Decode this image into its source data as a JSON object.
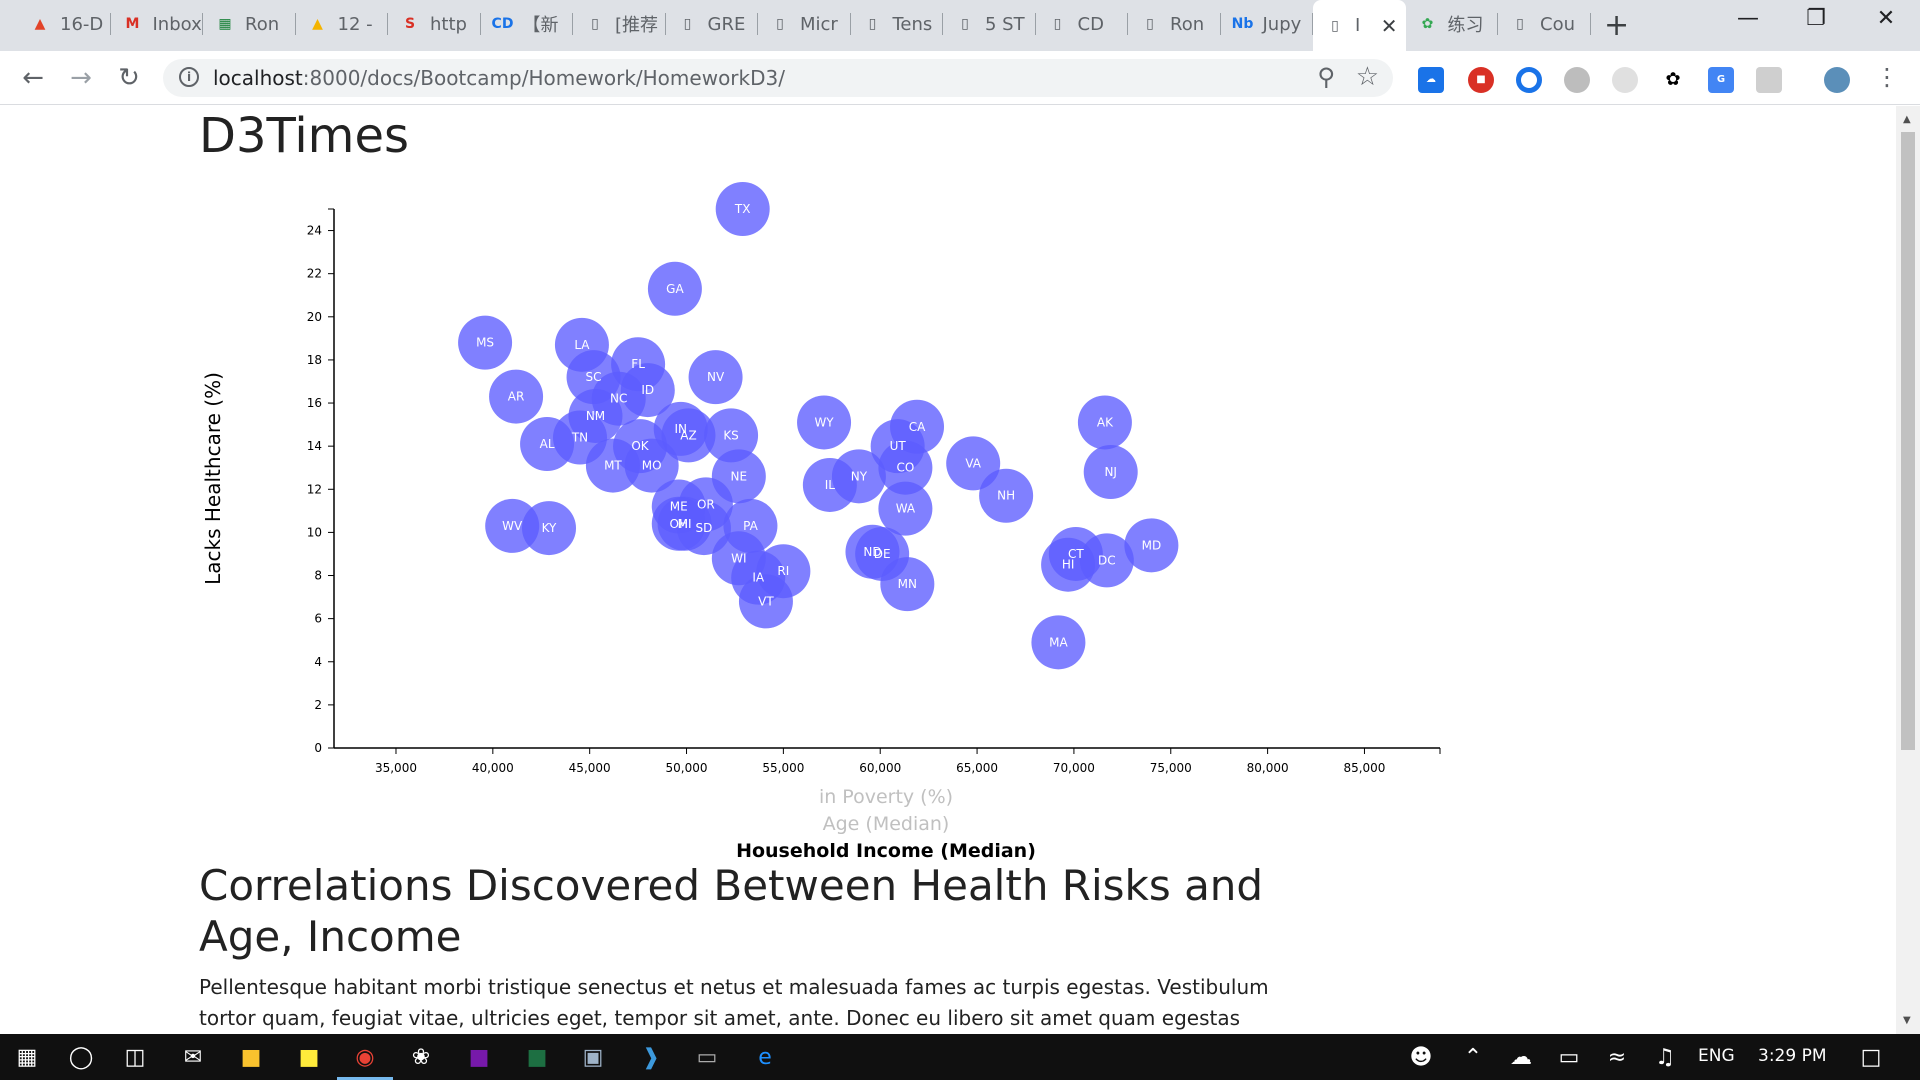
{
  "browser": {
    "tabs": [
      {
        "label": "16-D",
        "icon": "gitlab-icon",
        "color": "#e24329"
      },
      {
        "label": "Inbox",
        "icon": "gmail-icon",
        "color": "#d93025"
      },
      {
        "label": "Ron",
        "icon": "sheets-icon",
        "color": "#188038"
      },
      {
        "label": "12 -",
        "icon": "drive-icon",
        "color": "#f4b400"
      },
      {
        "label": "http",
        "icon": "s-icon",
        "color": "#d93025"
      },
      {
        "label": "【新",
        "icon": "cd-icon",
        "color": "#1a73e8"
      },
      {
        "label": "[推荐",
        "icon": "page-icon",
        "color": "#5f6368"
      },
      {
        "label": "GRE",
        "icon": "page-icon",
        "color": "#5f6368"
      },
      {
        "label": "Micr",
        "icon": "page-icon",
        "color": "#5f6368"
      },
      {
        "label": "Tens",
        "icon": "page-icon",
        "color": "#5f6368"
      },
      {
        "label": "5 ST",
        "icon": "page-icon",
        "color": "#5f6368"
      },
      {
        "label": "CD",
        "icon": "page-icon",
        "color": "#5f6368"
      },
      {
        "label": "Ron",
        "icon": "page-icon",
        "color": "#5f6368"
      },
      {
        "label": "Jupy",
        "icon": "jupyter-icon",
        "color": "#1a73e8"
      },
      {
        "label": "I",
        "icon": "page-icon",
        "color": "#5f6368"
      },
      {
        "label": "练习",
        "icon": "leaf-icon",
        "color": "#34a853"
      },
      {
        "label": "Cou",
        "icon": "page-icon",
        "color": "#5f6368"
      }
    ],
    "url_host": "localhost",
    "url_path": ":8000/docs/Bootcamp/Homework/HomeworkD3/"
  },
  "page": {
    "title": "D3Times",
    "section_title": "Correlations Discovered Between Health Risks and Age, Income",
    "body_text": "Pellentesque habitant morbi tristique senectus et netus et malesuada fames ac turpis egestas. Vestibulum tortor quam, feugiat vitae, ultricies eget, tempor sit amet, ante. Donec eu libero sit amet quam egestas semper. Aenean"
  },
  "chart_data": {
    "type": "scatter",
    "ylabel": "Lacks Healthcare (%)",
    "xlabels": [
      {
        "text": "in Poverty (%)",
        "active": false
      },
      {
        "text": "Age (Median)",
        "active": false
      },
      {
        "text": "Household Income (Median)",
        "active": true
      }
    ],
    "xlim": [
      31800,
      88900
    ],
    "ylim": [
      0,
      25
    ],
    "xticks": [
      35000,
      40000,
      45000,
      50000,
      55000,
      60000,
      65000,
      70000,
      75000,
      80000,
      85000
    ],
    "xtick_labels": [
      "35,000",
      "40,000",
      "45,000",
      "50,000",
      "55,000",
      "60,000",
      "65,000",
      "70,000",
      "75,000",
      "80,000",
      "85,000"
    ],
    "yticks": [
      0,
      2,
      4,
      6,
      8,
      10,
      12,
      14,
      16,
      18,
      20,
      22,
      24
    ],
    "ytick_labels": [
      "0",
      "2",
      "4",
      "6",
      "8",
      "10",
      "12",
      "14",
      "16",
      "18",
      "20",
      "22",
      "24"
    ],
    "point_color": "#5c5cff",
    "points": [
      {
        "abbr": "TX",
        "x": 52900,
        "y": 25.0
      },
      {
        "abbr": "GA",
        "x": 49400,
        "y": 21.3
      },
      {
        "abbr": "MS",
        "x": 39600,
        "y": 18.8
      },
      {
        "abbr": "LA",
        "x": 44600,
        "y": 18.7
      },
      {
        "abbr": "FL",
        "x": 47500,
        "y": 17.8
      },
      {
        "abbr": "SC",
        "x": 45200,
        "y": 17.2
      },
      {
        "abbr": "ID",
        "x": 48000,
        "y": 16.6
      },
      {
        "abbr": "NV",
        "x": 51500,
        "y": 17.2
      },
      {
        "abbr": "NC",
        "x": 46500,
        "y": 16.2
      },
      {
        "abbr": "AR",
        "x": 41200,
        "y": 16.3
      },
      {
        "abbr": "NM",
        "x": 45300,
        "y": 15.4
      },
      {
        "abbr": "IN",
        "x": 49700,
        "y": 14.8
      },
      {
        "abbr": "AZ",
        "x": 50100,
        "y": 14.5
      },
      {
        "abbr": "KS",
        "x": 52300,
        "y": 14.5
      },
      {
        "abbr": "WY",
        "x": 57100,
        "y": 15.1
      },
      {
        "abbr": "CA",
        "x": 61900,
        "y": 14.9
      },
      {
        "abbr": "AK",
        "x": 71600,
        "y": 15.1
      },
      {
        "abbr": "TN",
        "x": 44500,
        "y": 14.4
      },
      {
        "abbr": "AL",
        "x": 42800,
        "y": 14.1
      },
      {
        "abbr": "OK",
        "x": 47600,
        "y": 14.0
      },
      {
        "abbr": "UT",
        "x": 60900,
        "y": 14.0
      },
      {
        "abbr": "MT",
        "x": 46200,
        "y": 13.1
      },
      {
        "abbr": "MO",
        "x": 48200,
        "y": 13.1
      },
      {
        "abbr": "CO",
        "x": 61300,
        "y": 13.0
      },
      {
        "abbr": "VA",
        "x": 64800,
        "y": 13.2
      },
      {
        "abbr": "NJ",
        "x": 71900,
        "y": 12.8
      },
      {
        "abbr": "NE",
        "x": 52700,
        "y": 12.6
      },
      {
        "abbr": "IL",
        "x": 57400,
        "y": 12.2
      },
      {
        "abbr": "NY",
        "x": 58900,
        "y": 12.6
      },
      {
        "abbr": "NH",
        "x": 66500,
        "y": 11.7
      },
      {
        "abbr": "WA",
        "x": 61300,
        "y": 11.1
      },
      {
        "abbr": "ME",
        "x": 49600,
        "y": 11.2
      },
      {
        "abbr": "OR",
        "x": 51000,
        "y": 11.3
      },
      {
        "abbr": "MI",
        "x": 49900,
        "y": 10.4
      },
      {
        "abbr": "OH",
        "x": 49600,
        "y": 10.4
      },
      {
        "abbr": "SD",
        "x": 50900,
        "y": 10.2
      },
      {
        "abbr": "PA",
        "x": 53300,
        "y": 10.3
      },
      {
        "abbr": "WV",
        "x": 41000,
        "y": 10.3
      },
      {
        "abbr": "KY",
        "x": 42900,
        "y": 10.2
      },
      {
        "abbr": "ND",
        "x": 59600,
        "y": 9.1
      },
      {
        "abbr": "DE",
        "x": 60100,
        "y": 9.0
      },
      {
        "abbr": "CT",
        "x": 70100,
        "y": 9.0
      },
      {
        "abbr": "HI",
        "x": 69700,
        "y": 8.5
      },
      {
        "abbr": "DC",
        "x": 71700,
        "y": 8.7
      },
      {
        "abbr": "MD",
        "x": 74000,
        "y": 9.4
      },
      {
        "abbr": "WI",
        "x": 52700,
        "y": 8.8
      },
      {
        "abbr": "RI",
        "x": 55000,
        "y": 8.2
      },
      {
        "abbr": "IA",
        "x": 53700,
        "y": 7.9
      },
      {
        "abbr": "MN",
        "x": 61400,
        "y": 7.6
      },
      {
        "abbr": "VT",
        "x": 54100,
        "y": 6.8
      },
      {
        "abbr": "MA",
        "x": 69200,
        "y": 4.9
      }
    ]
  },
  "taskbar": {
    "language": "ENG",
    "time": "3:29 PM"
  }
}
